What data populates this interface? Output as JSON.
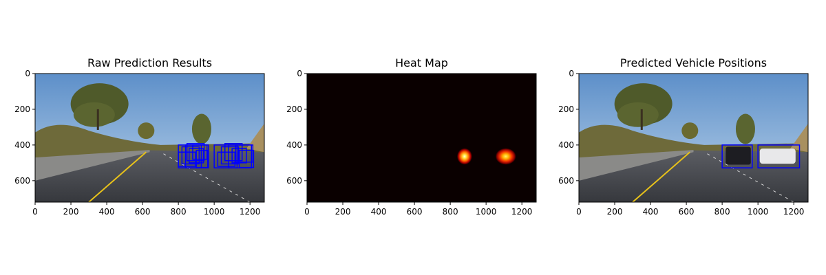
{
  "figure": {
    "subplot_titles": [
      "Raw Prediction Results",
      "Heat Map",
      "Predicted Vehicle Positions"
    ]
  },
  "chart_data": [
    {
      "type": "image",
      "title": "Raw Prediction Results",
      "xlim": [
        0,
        1280
      ],
      "ylim": [
        720,
        0
      ],
      "xticks": [
        0,
        200,
        400,
        600,
        800,
        1000,
        1200
      ],
      "yticks": [
        0,
        200,
        400,
        600
      ],
      "box_color": "#0000ff",
      "boxes": [
        [
          800,
          400,
          928,
          528
        ],
        [
          820,
          410,
          916,
          506
        ],
        [
          840,
          400,
          968,
          528
        ],
        [
          860,
          420,
          940,
          500
        ],
        [
          880,
          400,
          960,
          480
        ],
        [
          800,
          440,
          896,
          520
        ],
        [
          848,
          392,
          944,
          488
        ],
        [
          900,
          430,
          964,
          526
        ],
        [
          1000,
          400,
          1128,
          528
        ],
        [
          1040,
          410,
          1136,
          506
        ],
        [
          1080,
          400,
          1208,
          528
        ],
        [
          1100,
          420,
          1180,
          500
        ],
        [
          1120,
          400,
          1216,
          496
        ],
        [
          1020,
          440,
          1116,
          520
        ],
        [
          1140,
          430,
          1220,
          526
        ],
        [
          1060,
          392,
          1156,
          488
        ]
      ]
    },
    {
      "type": "heatmap",
      "title": "Heat Map",
      "xlim": [
        0,
        1280
      ],
      "ylim": [
        720,
        0
      ],
      "xticks": [
        0,
        200,
        400,
        600,
        800,
        1000,
        1200
      ],
      "yticks": [
        0,
        200,
        400,
        600
      ],
      "colormap": "hot",
      "hot_spots": [
        {
          "x": 880,
          "y": 464,
          "peak": 1.0
        },
        {
          "x": 1110,
          "y": 464,
          "peak": 0.85
        }
      ]
    },
    {
      "type": "image",
      "title": "Predicted Vehicle Positions",
      "xlim": [
        0,
        1280
      ],
      "ylim": [
        720,
        0
      ],
      "xticks": [
        0,
        200,
        400,
        600,
        800,
        1000,
        1200
      ],
      "yticks": [
        0,
        200,
        400,
        600
      ],
      "box_color": "#0000ff",
      "boxes": [
        [
          800,
          400,
          968,
          528
        ],
        [
          1000,
          400,
          1232,
          528
        ]
      ]
    }
  ]
}
